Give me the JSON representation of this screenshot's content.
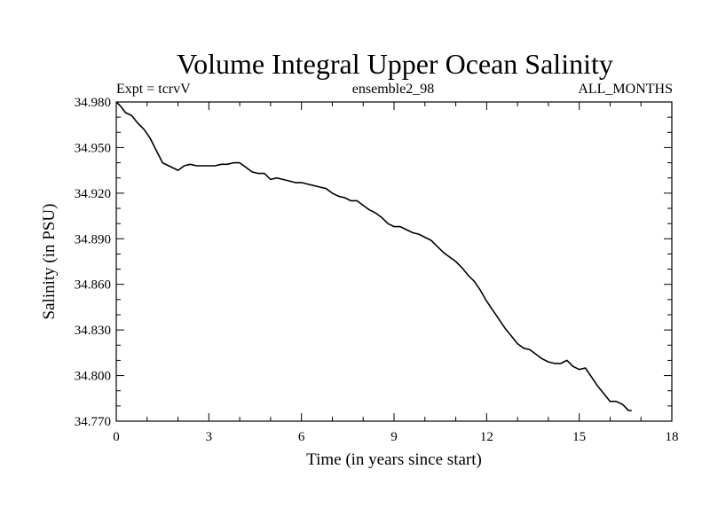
{
  "chart_data": {
    "type": "line",
    "title": "Volume Integral Upper Ocean Salinity",
    "header_left": "Expt = tcrvV",
    "header_center": "ensemble2_98",
    "header_right": "ALL_MONTHS",
    "xlabel": "Time (in years since start)",
    "ylabel": "Salinity (in PSU)",
    "xlim": [
      0,
      18
    ],
    "ylim": [
      34.77,
      34.98
    ],
    "xticks": [
      "0",
      "3",
      "6",
      "9",
      "12",
      "15",
      "18"
    ],
    "yticks": [
      "34.980",
      "34.950",
      "34.920",
      "34.890",
      "34.860",
      "34.830",
      "34.800",
      "34.770"
    ],
    "grid": false,
    "series": [
      {
        "x": [
          0.0,
          0.15,
          0.3,
          0.5,
          0.7,
          0.9,
          1.1,
          1.3,
          1.5,
          1.7,
          1.9,
          2.0,
          2.2,
          2.4,
          2.6,
          2.8,
          3.0,
          3.2,
          3.4,
          3.6,
          3.8,
          4.0,
          4.2,
          4.4,
          4.6,
          4.8,
          5.0,
          5.2,
          5.4,
          5.6,
          5.8,
          6.0,
          6.2,
          6.4,
          6.6,
          6.8,
          7.0,
          7.2,
          7.4,
          7.6,
          7.8,
          8.0,
          8.2,
          8.4,
          8.6,
          8.8,
          9.0,
          9.2,
          9.4,
          9.6,
          9.8,
          10.0,
          10.2,
          10.4,
          10.6,
          10.8,
          11.0,
          11.2,
          11.4,
          11.6,
          11.8,
          12.0,
          12.2,
          12.4,
          12.6,
          12.8,
          13.0,
          13.2,
          13.4,
          13.6,
          13.8,
          14.0,
          14.2,
          14.4,
          14.6,
          14.8,
          15.0,
          15.2,
          15.4,
          15.6,
          15.8,
          16.0,
          16.2,
          16.4,
          16.6,
          16.7
        ],
        "y": [
          34.98,
          34.977,
          34.973,
          34.971,
          34.966,
          34.962,
          34.956,
          34.948,
          34.94,
          34.938,
          34.936,
          34.935,
          34.938,
          34.939,
          34.938,
          34.938,
          34.938,
          34.938,
          34.939,
          34.939,
          34.94,
          34.94,
          34.937,
          34.934,
          34.933,
          34.933,
          34.929,
          34.93,
          34.929,
          34.928,
          34.927,
          34.927,
          34.926,
          34.925,
          34.924,
          34.923,
          34.92,
          34.918,
          34.917,
          34.915,
          34.915,
          34.912,
          34.909,
          34.907,
          34.904,
          34.9,
          34.898,
          34.898,
          34.896,
          34.894,
          34.893,
          34.891,
          34.889,
          34.885,
          34.881,
          34.878,
          34.875,
          34.871,
          34.866,
          34.862,
          34.856,
          34.849,
          34.843,
          34.837,
          34.831,
          34.826,
          34.821,
          34.818,
          34.817,
          34.814,
          34.811,
          34.809,
          34.808,
          34.808,
          34.81,
          34.806,
          34.804,
          34.805,
          34.799,
          34.793,
          34.788,
          34.783,
          34.783,
          34.781,
          34.777,
          34.777
        ]
      }
    ]
  }
}
